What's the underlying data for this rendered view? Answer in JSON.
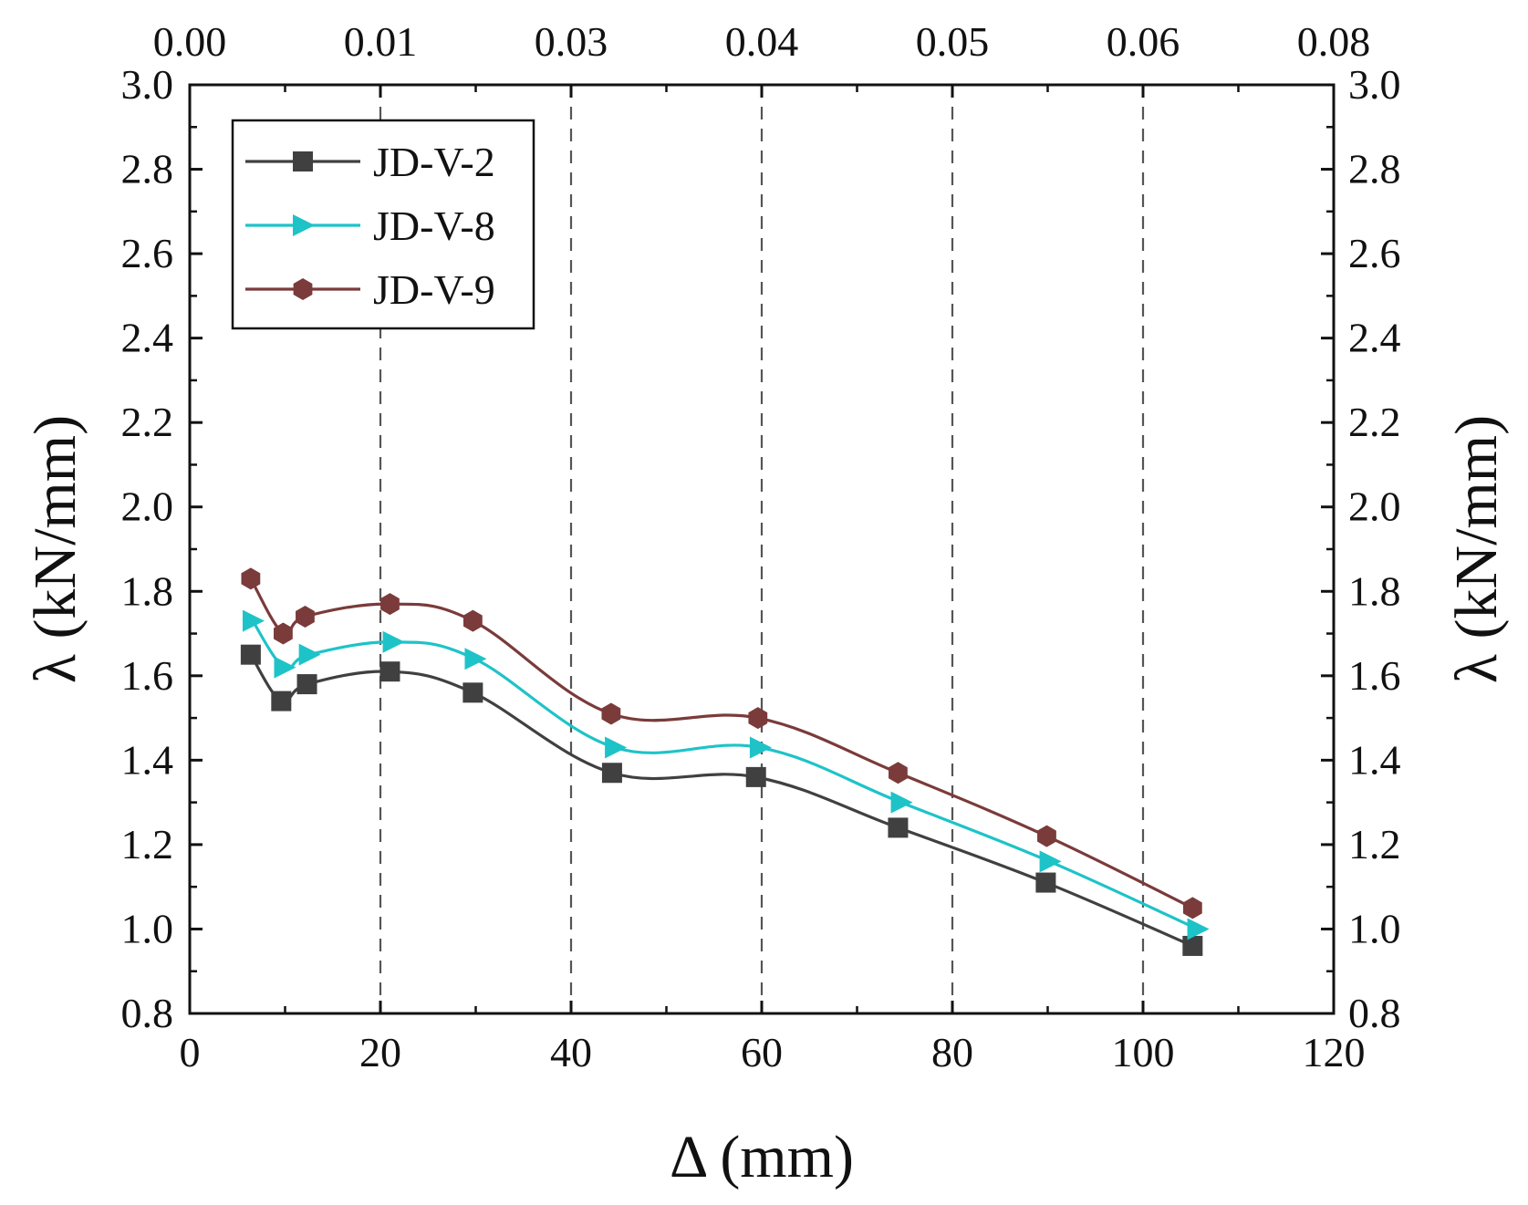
{
  "chart_data": {
    "type": "line",
    "xlabel": "Δ (mm)",
    "ylabel": "λ (kN/mm)",
    "ylabel_right": "λ (kN/mm)",
    "xlim": [
      0,
      120
    ],
    "ylim": [
      0.8,
      3.0
    ],
    "x_ticks": [
      0,
      20,
      40,
      60,
      80,
      100,
      120
    ],
    "y_ticks": [
      0.8,
      1.0,
      1.2,
      1.4,
      1.6,
      1.8,
      2.0,
      2.2,
      2.4,
      2.6,
      2.8,
      3.0
    ],
    "x_ticks_top": [
      "0.00",
      "0.01",
      "0.03",
      "0.04",
      "0.05",
      "0.06",
      "0.08"
    ],
    "grid_vertical_dashed_at": [
      20,
      40,
      60,
      80,
      100
    ],
    "legend_position": "top-left",
    "series": [
      {
        "name": "JD-V-2",
        "color": "#404040",
        "marker": "square",
        "x": [
          6.4,
          9.6,
          12.3,
          21.0,
          29.7,
          44.3,
          59.4,
          74.3,
          89.8,
          105.2
        ],
        "y": [
          1.65,
          1.54,
          1.58,
          1.61,
          1.56,
          1.37,
          1.36,
          1.24,
          1.11,
          0.96
        ]
      },
      {
        "name": "JD-V-8",
        "color": "#1ec3c8",
        "marker": "triangle-right",
        "x": [
          6.6,
          9.9,
          12.5,
          21.3,
          29.9,
          44.6,
          59.8,
          74.6,
          90.2,
          105.7
        ],
        "y": [
          1.73,
          1.62,
          1.65,
          1.68,
          1.64,
          1.43,
          1.43,
          1.3,
          1.16,
          1.0
        ]
      },
      {
        "name": "JD-V-9",
        "color": "#7a3b3a",
        "marker": "hexagon",
        "x": [
          6.4,
          9.8,
          12.1,
          21.0,
          29.7,
          44.2,
          59.6,
          74.3,
          89.9,
          105.2
        ],
        "y": [
          1.83,
          1.7,
          1.74,
          1.77,
          1.73,
          1.51,
          1.5,
          1.37,
          1.22,
          1.05
        ]
      }
    ]
  }
}
